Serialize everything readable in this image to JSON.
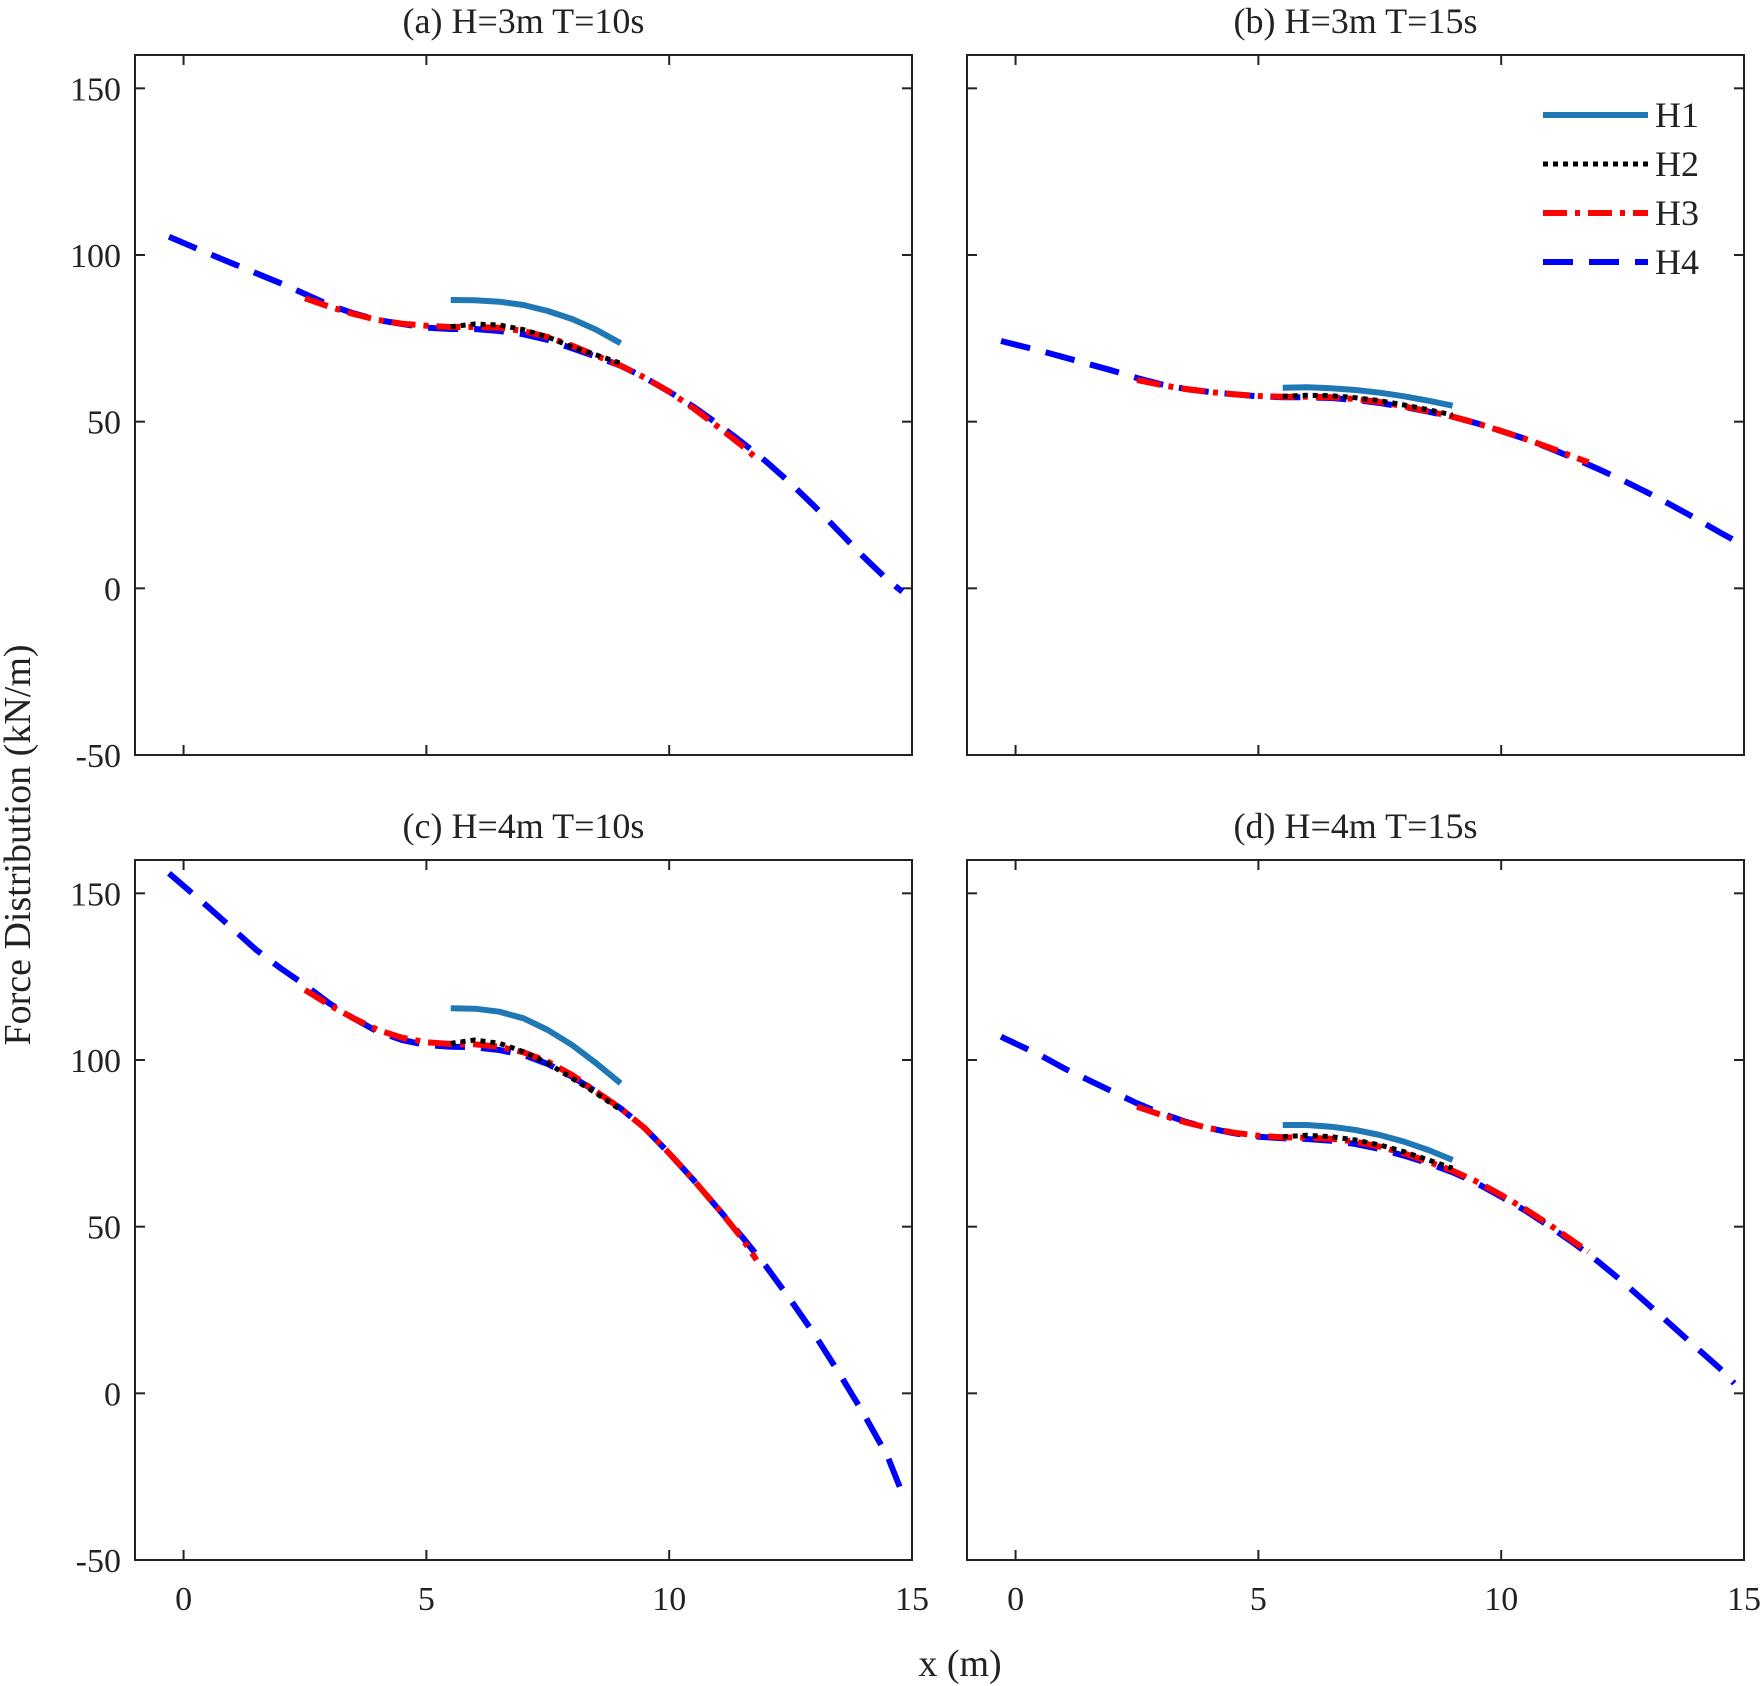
{
  "figure": {
    "ylabel": "Force Distribution (kN/m)",
    "xlabel": "x (m)"
  },
  "chart_data": [
    {
      "type": "line",
      "title": "(a) H=3m T=10s",
      "xlabel": "x (m)",
      "ylabel": "Force Distribution (kN/m)",
      "xlim": [
        -1,
        15
      ],
      "ylim": [
        -50,
        160
      ],
      "xticks": [
        0,
        5,
        10,
        15
      ],
      "yticks": [
        -50,
        0,
        50,
        100,
        150
      ],
      "series": [
        {
          "name": "H1",
          "x": [
            5.5,
            6.0,
            6.5,
            7.0,
            7.5,
            8.0,
            8.5,
            9.0
          ],
          "y": [
            86.5,
            86.4,
            86.0,
            85.0,
            83.2,
            80.8,
            77.6,
            73.5
          ]
        },
        {
          "name": "H2",
          "x": [
            5.5,
            6.0,
            6.5,
            7.0,
            7.5,
            8.0,
            8.5,
            9.0
          ],
          "y": [
            78.5,
            79.3,
            79.0,
            77.6,
            75.4,
            72.4,
            70.0,
            67.5
          ]
        },
        {
          "name": "H3",
          "x": [
            2.5,
            3.0,
            3.5,
            4.0,
            4.5,
            5.0,
            5.5,
            6.0,
            6.5,
            7.0,
            7.5,
            8.0,
            8.5,
            9.0,
            9.5,
            10.0,
            10.5,
            11.0,
            11.5,
            11.8
          ],
          "y": [
            87.0,
            84.5,
            82.3,
            80.5,
            79.4,
            78.8,
            78.4,
            78.4,
            78.2,
            77.2,
            75.4,
            72.8,
            69.8,
            66.8,
            63.2,
            59.0,
            54.0,
            48.5,
            42.8,
            39.0
          ]
        },
        {
          "name": "H4",
          "x": [
            -0.3,
            0.5,
            1.0,
            1.5,
            2.0,
            2.5,
            3.0,
            3.5,
            4.0,
            4.5,
            5.0,
            5.5,
            6.0,
            6.5,
            7.0,
            7.5,
            8.0,
            8.5,
            9.0,
            9.5,
            10.0,
            10.5,
            11.0,
            11.5,
            12.0,
            12.5,
            13.0,
            13.5,
            14.0,
            14.5,
            14.8
          ],
          "y": [
            105.5,
            100.5,
            97.5,
            94.5,
            91.5,
            88.3,
            85.0,
            82.5,
            80.5,
            79.3,
            78.2,
            77.8,
            77.8,
            77.2,
            76.2,
            74.5,
            72.0,
            69.5,
            66.8,
            63.2,
            59.0,
            54.5,
            49.3,
            43.8,
            38.0,
            31.5,
            24.5,
            17.0,
            9.5,
            2.5,
            -1.0
          ]
        }
      ]
    },
    {
      "type": "line",
      "title": "(b) H=3m T=15s",
      "xlabel": "x (m)",
      "ylabel": "",
      "xlim": [
        -1,
        15
      ],
      "ylim": [
        -50,
        160
      ],
      "xticks": [
        0,
        5,
        10,
        15
      ],
      "yticks": [
        -50,
        0,
        50,
        100,
        150
      ],
      "legend": {
        "position": "top-right",
        "entries": [
          "H1",
          "H2",
          "H3",
          "H4"
        ]
      },
      "series": [
        {
          "name": "H1",
          "x": [
            5.5,
            6.0,
            6.5,
            7.0,
            7.5,
            8.0,
            8.5,
            9.0
          ],
          "y": [
            60.2,
            60.3,
            60.0,
            59.5,
            58.7,
            57.6,
            56.3,
            54.8
          ]
        },
        {
          "name": "H2",
          "x": [
            5.5,
            6.0,
            6.5,
            7.0,
            7.5,
            8.0,
            8.5,
            9.0
          ],
          "y": [
            57.6,
            57.9,
            57.8,
            57.2,
            56.3,
            55.0,
            53.6,
            52.0
          ]
        },
        {
          "name": "H3",
          "x": [
            2.5,
            3.0,
            3.5,
            4.0,
            4.5,
            5.0,
            5.5,
            6.0,
            6.5,
            7.0,
            7.5,
            8.0,
            8.5,
            9.0,
            9.5,
            10.0,
            10.5,
            11.0,
            11.5,
            11.8
          ],
          "y": [
            62.5,
            61.0,
            59.8,
            58.9,
            58.2,
            57.7,
            57.5,
            57.5,
            57.3,
            56.8,
            55.9,
            54.6,
            53.1,
            51.5,
            49.5,
            47.2,
            44.8,
            42.2,
            39.4,
            37.8
          ]
        },
        {
          "name": "H4",
          "x": [
            -0.3,
            0.5,
            1.0,
            1.5,
            2.0,
            2.5,
            3.0,
            3.5,
            4.0,
            4.5,
            5.0,
            5.5,
            6.0,
            6.5,
            7.0,
            7.5,
            8.0,
            8.5,
            9.0,
            9.5,
            10.0,
            10.5,
            11.0,
            11.5,
            12.0,
            12.5,
            13.0,
            13.5,
            14.0,
            14.5,
            14.8
          ],
          "y": [
            74.2,
            71.3,
            69.3,
            67.3,
            65.3,
            63.1,
            61.2,
            59.8,
            58.9,
            58.2,
            57.6,
            57.3,
            57.3,
            57.1,
            56.5,
            55.6,
            54.4,
            53.0,
            51.5,
            49.5,
            47.2,
            44.8,
            42.0,
            39.0,
            35.8,
            32.4,
            28.8,
            25.0,
            21.0,
            16.8,
            14.4
          ]
        }
      ]
    },
    {
      "type": "line",
      "title": "(c) H=4m T=10s",
      "xlabel": "x (m)",
      "ylabel": "Force Distribution (kN/m)",
      "xlim": [
        -1,
        15
      ],
      "ylim": [
        -50,
        160
      ],
      "xticks": [
        0,
        5,
        10,
        15
      ],
      "yticks": [
        -50,
        0,
        50,
        100,
        150
      ],
      "series": [
        {
          "name": "H1",
          "x": [
            5.5,
            6.0,
            6.5,
            7.0,
            7.5,
            8.0,
            8.5,
            9.0
          ],
          "y": [
            115.5,
            115.4,
            114.5,
            112.5,
            109.0,
            104.5,
            99.0,
            93.0
          ]
        },
        {
          "name": "H2",
          "x": [
            5.5,
            6.0,
            6.5,
            7.0,
            7.5,
            8.0,
            8.5,
            9.0
          ],
          "y": [
            105.0,
            106.0,
            105.0,
            102.5,
            99.0,
            94.5,
            90.0,
            85.0
          ]
        },
        {
          "name": "H3",
          "x": [
            2.5,
            3.0,
            3.5,
            4.0,
            4.5,
            5.0,
            5.5,
            6.0,
            6.5,
            7.0,
            7.5,
            8.0,
            8.5,
            9.0,
            9.5,
            10.0,
            10.5,
            11.0,
            11.5,
            11.8
          ],
          "y": [
            121.0,
            116.5,
            112.5,
            109.0,
            106.7,
            105.3,
            104.8,
            104.7,
            104.0,
            102.3,
            99.5,
            95.5,
            90.5,
            85.5,
            79.5,
            72.0,
            64.0,
            55.5,
            46.5,
            40.0
          ]
        },
        {
          "name": "H4",
          "x": [
            -0.3,
            0.5,
            1.0,
            1.5,
            2.0,
            2.5,
            3.0,
            3.5,
            4.0,
            4.5,
            5.0,
            5.5,
            6.0,
            6.5,
            7.0,
            7.5,
            8.0,
            8.5,
            9.0,
            9.5,
            10.0,
            10.5,
            11.0,
            11.5,
            12.0,
            12.5,
            13.0,
            13.5,
            14.0,
            14.5,
            14.8
          ],
          "y": [
            156.0,
            146.0,
            139.5,
            133.0,
            127.5,
            122.5,
            117.0,
            112.5,
            108.5,
            106.0,
            104.5,
            104.0,
            103.8,
            103.0,
            101.5,
            98.8,
            95.0,
            90.5,
            85.5,
            79.5,
            72.0,
            64.0,
            55.5,
            47.0,
            38.0,
            28.0,
            17.5,
            6.0,
            -6.0,
            -19.0,
            -30.0
          ]
        }
      ]
    },
    {
      "type": "line",
      "title": "(d) H=4m T=15s",
      "xlabel": "x (m)",
      "ylabel": "",
      "xlim": [
        -1,
        15
      ],
      "ylim": [
        -50,
        160
      ],
      "xticks": [
        0,
        5,
        10,
        15
      ],
      "yticks": [
        -50,
        0,
        50,
        100,
        150
      ],
      "series": [
        {
          "name": "H1",
          "x": [
            5.5,
            6.0,
            6.5,
            7.0,
            7.5,
            8.0,
            8.5,
            9.0
          ],
          "y": [
            80.5,
            80.5,
            80.0,
            79.0,
            77.5,
            75.5,
            73.0,
            70.0
          ]
        },
        {
          "name": "H2",
          "x": [
            5.5,
            6.0,
            6.5,
            7.0,
            7.5,
            8.0,
            8.5,
            9.0
          ],
          "y": [
            77.0,
            77.4,
            77.0,
            76.0,
            74.5,
            72.5,
            70.0,
            67.5
          ]
        },
        {
          "name": "H3",
          "x": [
            2.5,
            3.0,
            3.5,
            4.0,
            4.5,
            5.0,
            5.5,
            6.0,
            6.5,
            7.0,
            7.5,
            8.0,
            8.5,
            9.0,
            9.5,
            10.0,
            10.5,
            11.0,
            11.5,
            11.8
          ],
          "y": [
            86.0,
            83.5,
            81.3,
            79.5,
            78.2,
            77.3,
            76.8,
            76.7,
            76.4,
            75.5,
            74.0,
            72.0,
            69.5,
            66.8,
            63.5,
            59.5,
            55.2,
            50.5,
            45.5,
            42.5
          ]
        },
        {
          "name": "H4",
          "x": [
            -0.3,
            0.5,
            1.0,
            1.5,
            2.0,
            2.5,
            3.0,
            3.5,
            4.0,
            4.5,
            5.0,
            5.5,
            6.0,
            6.5,
            7.0,
            7.5,
            8.0,
            8.5,
            9.0,
            9.5,
            10.0,
            10.5,
            11.0,
            11.5,
            12.0,
            12.5,
            13.0,
            13.5,
            14.0,
            14.5,
            14.8
          ],
          "y": [
            107.0,
            101.5,
            97.5,
            94.0,
            90.5,
            87.0,
            84.0,
            81.5,
            79.5,
            78.0,
            77.0,
            76.5,
            76.3,
            75.8,
            74.8,
            73.3,
            71.3,
            69.0,
            66.3,
            63.0,
            59.0,
            54.8,
            50.0,
            45.0,
            39.5,
            33.5,
            27.0,
            20.5,
            14.0,
            7.5,
            3.0
          ]
        }
      ]
    }
  ],
  "series_styles": {
    "H1": {
      "color": "#1f77b4"
    },
    "H2": {
      "color": "#000000"
    },
    "H3": {
      "color": "#ff0000"
    },
    "H4": {
      "color": "#0000ff"
    }
  }
}
